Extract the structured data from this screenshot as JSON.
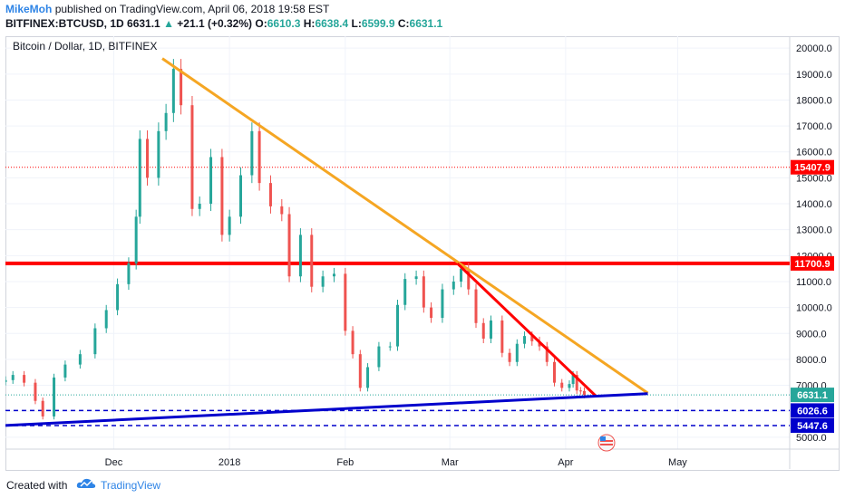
{
  "header": {
    "author": "MikeMoh",
    "published_text": "published on TradingView.com, April 06, 2018 19:58 EST",
    "symbol": "BITFINEX:BTCUSD, 1D",
    "last": "6631.1",
    "change": "+21.1 (+0.32%)",
    "o_label": "O:",
    "o_value": "6610.3",
    "h_label": "H:",
    "h_value": "6638.4",
    "l_label": "L:",
    "l_value": "6599.9",
    "c_label": "C:",
    "c_value": "6631.1"
  },
  "footer": {
    "created_with": "Created with",
    "brand": "TradingView"
  },
  "colors": {
    "up": "#26a69a",
    "down": "#ef5350",
    "orange_trend": "#f5a623",
    "red_line": "#ff0000",
    "blue_line": "#0000cc",
    "current_line": "#26a69a"
  },
  "chart_data": {
    "type": "candlestick",
    "title": "Bitcoin / Dollar, 1D, BITFINEX",
    "y_axis": {
      "range": [
        4540,
        20460
      ],
      "ticks": [
        "5000.0",
        "6000.0",
        "7000.0",
        "8000.0",
        "9000.0",
        "10000.0",
        "11000.0",
        "12000.0",
        "13000.0",
        "14000.0",
        "15000.0",
        "16000.0",
        "17000.0",
        "18000.0",
        "19000.0",
        "20000.0"
      ],
      "position": "right"
    },
    "x_axis": {
      "ticks": [
        {
          "label": "Dec",
          "date": "2017-12-01"
        },
        {
          "label": "2018",
          "date": "2018-01-01"
        },
        {
          "label": "Feb",
          "date": "2018-02-01"
        },
        {
          "label": "Mar",
          "date": "2018-03-01"
        },
        {
          "label": "Apr",
          "date": "2018-04-01"
        },
        {
          "label": "May",
          "date": "2018-05-01"
        }
      ],
      "range": [
        "2017-11-02",
        "2018-05-31"
      ]
    },
    "grid": true,
    "candles": [
      {
        "date": "2017-11-02",
        "close": 7200
      },
      {
        "date": "2017-11-04",
        "close": 7400
      },
      {
        "date": "2017-11-07",
        "close": 7100
      },
      {
        "date": "2017-11-10",
        "close": 6400
      },
      {
        "date": "2017-11-12",
        "close": 5800
      },
      {
        "date": "2017-11-15",
        "close": 7300
      },
      {
        "date": "2017-11-18",
        "close": 7800
      },
      {
        "date": "2017-11-22",
        "close": 8200
      },
      {
        "date": "2017-11-26",
        "close": 9200
      },
      {
        "date": "2017-11-29",
        "close": 9900
      },
      {
        "date": "2017-12-02",
        "close": 10900
      },
      {
        "date": "2017-12-05",
        "close": 11700
      },
      {
        "date": "2017-12-07",
        "close": 13500
      },
      {
        "date": "2017-12-08",
        "close": 16500
      },
      {
        "date": "2017-12-10",
        "close": 15000
      },
      {
        "date": "2017-12-13",
        "close": 16800
      },
      {
        "date": "2017-12-15",
        "close": 17500
      },
      {
        "date": "2017-12-17",
        "close": 19200
      },
      {
        "date": "2017-12-19",
        "close": 17800
      },
      {
        "date": "2017-12-22",
        "close": 13800
      },
      {
        "date": "2017-12-24",
        "close": 14000
      },
      {
        "date": "2017-12-27",
        "close": 15800
      },
      {
        "date": "2017-12-30",
        "close": 12800
      },
      {
        "date": "2018-01-01",
        "close": 13500
      },
      {
        "date": "2018-01-04",
        "close": 15100
      },
      {
        "date": "2018-01-07",
        "close": 16800
      },
      {
        "date": "2018-01-09",
        "close": 14800
      },
      {
        "date": "2018-01-12",
        "close": 13900
      },
      {
        "date": "2018-01-15",
        "close": 13600
      },
      {
        "date": "2018-01-17",
        "close": 11200
      },
      {
        "date": "2018-01-20",
        "close": 12800
      },
      {
        "date": "2018-01-23",
        "close": 10800
      },
      {
        "date": "2018-01-26",
        "close": 11200
      },
      {
        "date": "2018-01-29",
        "close": 11300
      },
      {
        "date": "2018-02-01",
        "close": 9100
      },
      {
        "date": "2018-02-03",
        "close": 8200
      },
      {
        "date": "2018-02-05",
        "close": 6900
      },
      {
        "date": "2018-02-07",
        "close": 7700
      },
      {
        "date": "2018-02-10",
        "close": 8500
      },
      {
        "date": "2018-02-13",
        "close": 8500
      },
      {
        "date": "2018-02-15",
        "close": 10100
      },
      {
        "date": "2018-02-17",
        "close": 11100
      },
      {
        "date": "2018-02-20",
        "close": 11200
      },
      {
        "date": "2018-02-22",
        "close": 10000
      },
      {
        "date": "2018-02-24",
        "close": 9600
      },
      {
        "date": "2018-02-27",
        "close": 10700
      },
      {
        "date": "2018-03-02",
        "close": 11000
      },
      {
        "date": "2018-03-04",
        "close": 11500
      },
      {
        "date": "2018-03-06",
        "close": 10700
      },
      {
        "date": "2018-03-08",
        "close": 9400
      },
      {
        "date": "2018-03-10",
        "close": 8800
      },
      {
        "date": "2018-03-12",
        "close": 9500
      },
      {
        "date": "2018-03-15",
        "close": 8250
      },
      {
        "date": "2018-03-17",
        "close": 7900
      },
      {
        "date": "2018-03-19",
        "close": 8600
      },
      {
        "date": "2018-03-21",
        "close": 8900
      },
      {
        "date": "2018-03-23",
        "close": 8700
      },
      {
        "date": "2018-03-25",
        "close": 8500
      },
      {
        "date": "2018-03-27",
        "close": 7900
      },
      {
        "date": "2018-03-29",
        "close": 7100
      },
      {
        "date": "2018-03-31",
        "close": 6900
      },
      {
        "date": "2018-04-02",
        "close": 7050
      },
      {
        "date": "2018-04-03",
        "close": 7400
      },
      {
        "date": "2018-04-04",
        "close": 6800
      },
      {
        "date": "2018-04-05",
        "close": 6780
      },
      {
        "date": "2018-04-06",
        "close": 6631.1
      }
    ],
    "horizontal_lines": [
      {
        "price": 15407.9,
        "label": "15407.9",
        "color": "#ff0000",
        "style": "dotted"
      },
      {
        "price": 11700.9,
        "label": "11700.9",
        "color": "#ff0000",
        "style": "thick"
      },
      {
        "price": 6631.1,
        "label": "6631.1",
        "color": "#26a69a",
        "style": "dotted"
      },
      {
        "price": 6026.6,
        "label": "6026.6",
        "color": "#0000cc",
        "style": "dashed"
      },
      {
        "price": 5447.6,
        "label": "5447.6",
        "color": "#0000cc",
        "style": "dashed"
      }
    ],
    "trendlines": [
      {
        "name": "orange-trendline",
        "from": {
          "date": "2017-12-14",
          "price": 19600
        },
        "to": {
          "date": "2018-04-23",
          "price": 6700
        },
        "color": "#f5a623"
      },
      {
        "name": "red-trendline",
        "from": {
          "date": "2018-03-03",
          "price": 11700
        },
        "to": {
          "date": "2018-04-09",
          "price": 6600
        },
        "color": "#ff0000"
      },
      {
        "name": "blue-trendline",
        "from": {
          "date": "2017-11-02",
          "price": 5450
        },
        "to": {
          "date": "2018-04-23",
          "price": 6680
        },
        "color": "#0000cc"
      }
    ]
  }
}
